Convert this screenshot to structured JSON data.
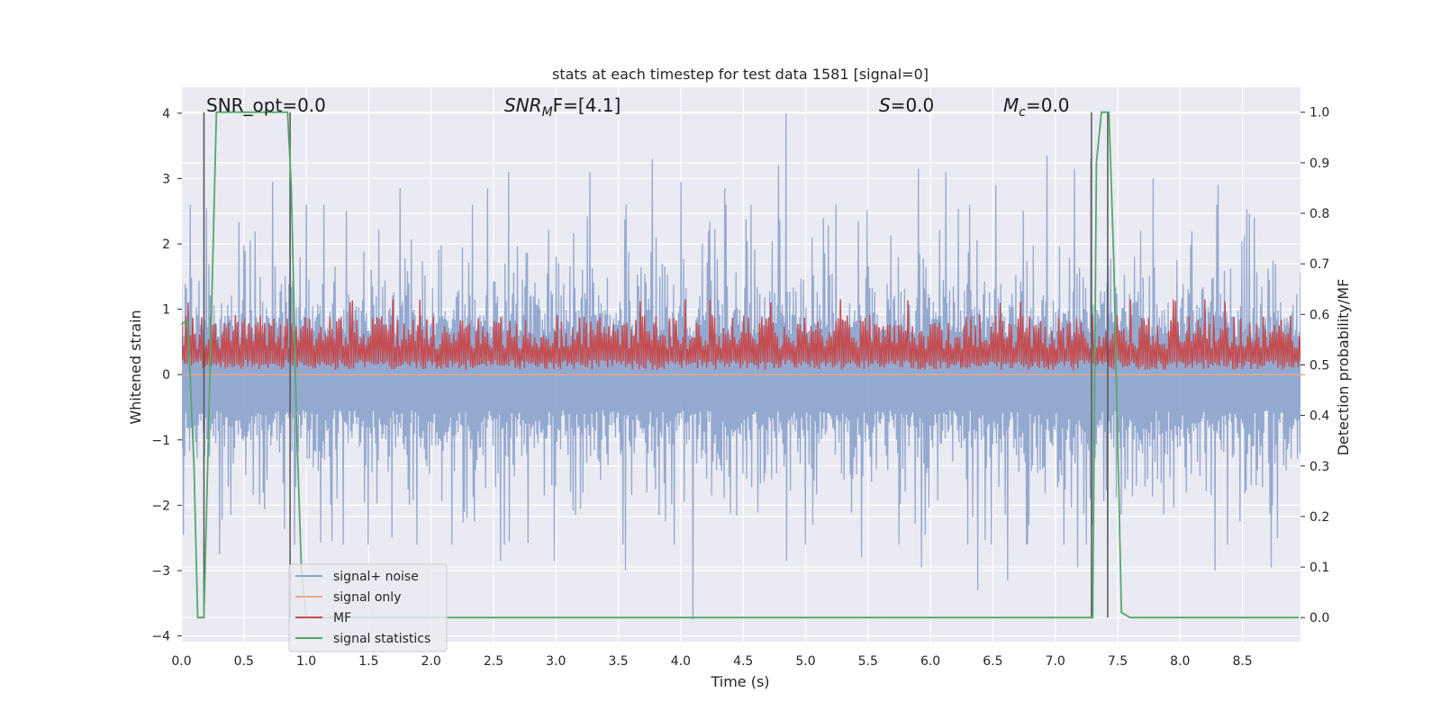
{
  "chart_data": {
    "type": "line",
    "title": "stats at each timestep for test data 1581 [signal=0]",
    "xlabel": "Time (s)",
    "ylabel": "Whitened strain",
    "y2label": "Detection probability/MF",
    "xlim": [
      0.0,
      9.0
    ],
    "ylim": [
      -4.1,
      4.4
    ],
    "y2lim": [
      -0.045,
      1.045
    ],
    "xticks": [
      "0.0",
      "0.5",
      "1.0",
      "1.5",
      "2.0",
      "2.5",
      "3.0",
      "3.5",
      "4.0",
      "4.5",
      "5.0",
      "5.5",
      "6.0",
      "6.5",
      "7.0",
      "7.5",
      "8.0",
      "8.5"
    ],
    "yticks": [
      "4",
      "3",
      "2",
      "1",
      "0",
      "−1",
      "−2",
      "−3",
      "−4"
    ],
    "y2ticks": [
      "1.0",
      "0.9",
      "0.8",
      "0.7",
      "0.6",
      "0.5",
      "0.4",
      "0.3",
      "0.2",
      "0.1",
      "0.0"
    ],
    "grid": true,
    "legend_position": "lower-left",
    "annotations": [
      {
        "id": "snr-opt",
        "text": "SNR_opt=0.0"
      },
      {
        "id": "snr-mf",
        "text": "SNRMF=[4.1]",
        "main": "SNR",
        "sub": "M",
        "tail": "F=[4.1]"
      },
      {
        "id": "s-stat",
        "text": "S=0.0",
        "main": "S",
        "tail": "=0.0"
      },
      {
        "id": "mc-stat",
        "text": "Mc=0.0",
        "main": "M",
        "sub": "c",
        "tail": "=0.0"
      }
    ],
    "series": [
      {
        "name": "signal+ noise",
        "axis": "left",
        "color": "#8fa5cd",
        "kind": "noise-band",
        "x_range": [
          0.0,
          9.0
        ],
        "typical_abs": 1.4,
        "peaks": [
          [
            0.2,
            2.55
          ],
          [
            0.73,
            2.95
          ],
          [
            0.87,
            3.05
          ],
          [
            1.32,
            2.5
          ],
          [
            1.75,
            2.85
          ],
          [
            2.45,
            2.85
          ],
          [
            2.62,
            3.1
          ],
          [
            3.27,
            3.1
          ],
          [
            3.77,
            3.3
          ],
          [
            4.0,
            2.95
          ],
          [
            4.35,
            2.85
          ],
          [
            4.78,
            3.2
          ],
          [
            4.84,
            4.0
          ],
          [
            5.9,
            3.15
          ],
          [
            6.12,
            3.1
          ],
          [
            6.52,
            2.9
          ],
          [
            6.93,
            3.35
          ],
          [
            7.15,
            3.15
          ],
          [
            7.28,
            3.3
          ],
          [
            7.78,
            3.0
          ],
          [
            8.3,
            2.9
          ]
        ],
        "troughs": [
          [
            0.01,
            -2.45
          ],
          [
            0.3,
            -2.75
          ],
          [
            1.2,
            -2.55
          ],
          [
            1.68,
            -2.5
          ],
          [
            2.55,
            -2.85
          ],
          [
            2.98,
            -2.85
          ],
          [
            3.55,
            -3.0
          ],
          [
            4.09,
            -3.75
          ],
          [
            4.85,
            -2.85
          ],
          [
            5.45,
            -2.8
          ],
          [
            5.93,
            -2.95
          ],
          [
            6.38,
            -3.3
          ],
          [
            6.62,
            -3.15
          ],
          [
            7.18,
            -2.95
          ],
          [
            7.42,
            -2.95
          ],
          [
            8.28,
            -3.0
          ],
          [
            8.73,
            -2.95
          ]
        ]
      },
      {
        "name": "signal only",
        "axis": "left",
        "color": "#e8a98c",
        "x": [
          0.0,
          9.0
        ],
        "y": [
          0.0,
          0.0
        ]
      },
      {
        "name": "MF",
        "axis": "right",
        "color": "#c44e52",
        "kind": "noise-band",
        "x_range": [
          0.0,
          9.0
        ],
        "base": 0.5,
        "typical_high": 0.59,
        "max": 0.63,
        "min": 0.49
      },
      {
        "name": "signal statistics",
        "axis": "right",
        "color": "#55a868",
        "x": [
          0.0,
          0.05,
          0.1,
          0.13,
          0.18,
          0.24,
          0.28,
          0.85,
          0.88,
          0.92,
          0.96,
          1.0,
          7.3,
          7.33,
          7.37,
          7.43,
          7.47,
          7.53,
          7.6,
          8.95
        ],
        "y": [
          0.58,
          0.59,
          0.3,
          0.0,
          0.0,
          0.6,
          1.0,
          1.0,
          0.85,
          0.4,
          0.1,
          0.0,
          0.0,
          0.9,
          1.0,
          1.0,
          0.7,
          0.01,
          0.0,
          0.0
        ]
      }
    ],
    "markers": {
      "color": "#555555",
      "axis": "right",
      "x": [
        0.18,
        0.87,
        7.29,
        7.42
      ],
      "y_range": [
        0.0,
        1.0
      ]
    }
  }
}
